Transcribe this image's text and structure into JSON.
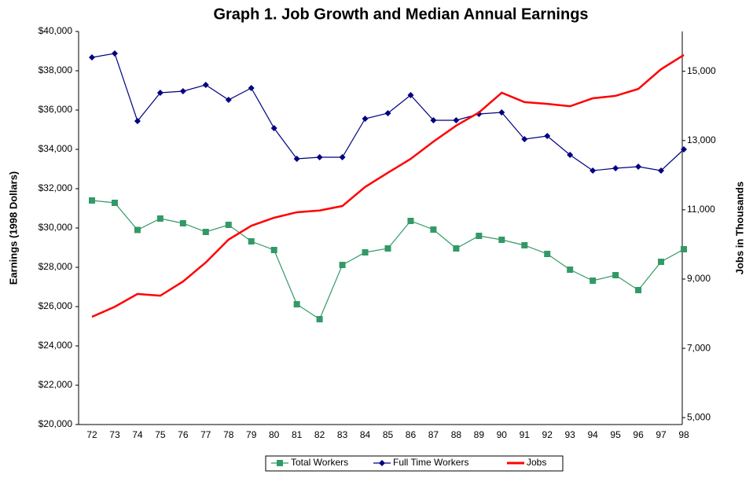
{
  "chart_data": {
    "type": "line",
    "title": "Graph 1. Job Growth and Median Annual Earnings",
    "y_label": "Earnings (1998 Dollars)",
    "y2_label": "Jobs in Thousands",
    "categories": [
      "72",
      "73",
      "74",
      "75",
      "76",
      "77",
      "78",
      "79",
      "80",
      "81",
      "82",
      "83",
      "84",
      "85",
      "86",
      "87",
      "88",
      "89",
      "90",
      "91",
      "92",
      "93",
      "94",
      "95",
      "96",
      "97",
      "98"
    ],
    "series": [
      {
        "name": "Total Workers",
        "color": "#339966",
        "marker": "square",
        "values": [
          31400,
          31280,
          29900,
          30480,
          30240,
          29800,
          30160,
          29320,
          28880,
          26120,
          25360,
          28120,
          28760,
          28960,
          30360,
          29920,
          28960,
          29600,
          29400,
          29120,
          28680,
          27880,
          27320,
          27600,
          26840,
          28280,
          28920
        ]
      },
      {
        "name": "Full Time Workers",
        "color": "#000080",
        "marker": "diamond",
        "values": [
          38680,
          38880,
          35440,
          36880,
          36960,
          37280,
          36520,
          37120,
          35080,
          33520,
          33600,
          33600,
          35560,
          35840,
          36760,
          35480,
          35480,
          35800,
          35880,
          34520,
          34680,
          33720,
          32920,
          33040,
          33120,
          32920,
          34000
        ]
      },
      {
        "name": "Jobs",
        "color": "#ff0000",
        "marker": "none",
        "axis": "y2",
        "values": [
          7910,
          8200,
          8570,
          8520,
          8930,
          9480,
          10140,
          10540,
          10770,
          10930,
          10980,
          11110,
          11660,
          12070,
          12470,
          12970,
          13430,
          13810,
          14380,
          14110,
          14060,
          13990,
          14220,
          14290,
          14490,
          15060,
          15470
        ]
      }
    ],
    "ylim": [
      20000,
      40000
    ],
    "yticks": [
      {
        "value": 20000,
        "label": "$20,000"
      },
      {
        "value": 22000,
        "label": "$22,000"
      },
      {
        "value": 24000,
        "label": "$24,000"
      },
      {
        "value": 26000,
        "label": "$26,000"
      },
      {
        "value": 28000,
        "label": "$28,000"
      },
      {
        "value": 30000,
        "label": "$30,000"
      },
      {
        "value": 32000,
        "label": "$32,000"
      },
      {
        "value": 34000,
        "label": "$34,000"
      },
      {
        "value": 36000,
        "label": "$36,000"
      },
      {
        "value": 38000,
        "label": "$38,000"
      },
      {
        "value": 40000,
        "label": "$40,000"
      }
    ],
    "y2lim": [
      4800,
      16150
    ],
    "y2ticks": [
      {
        "value": 5000,
        "label": "5,000"
      },
      {
        "value": 7000,
        "label": "7,000"
      },
      {
        "value": 9000,
        "label": "9,000"
      },
      {
        "value": 11000,
        "label": "11,000"
      },
      {
        "value": 13000,
        "label": "13,000"
      },
      {
        "value": 15000,
        "label": "15,000"
      }
    ],
    "grid": false,
    "legend": "bottom"
  }
}
